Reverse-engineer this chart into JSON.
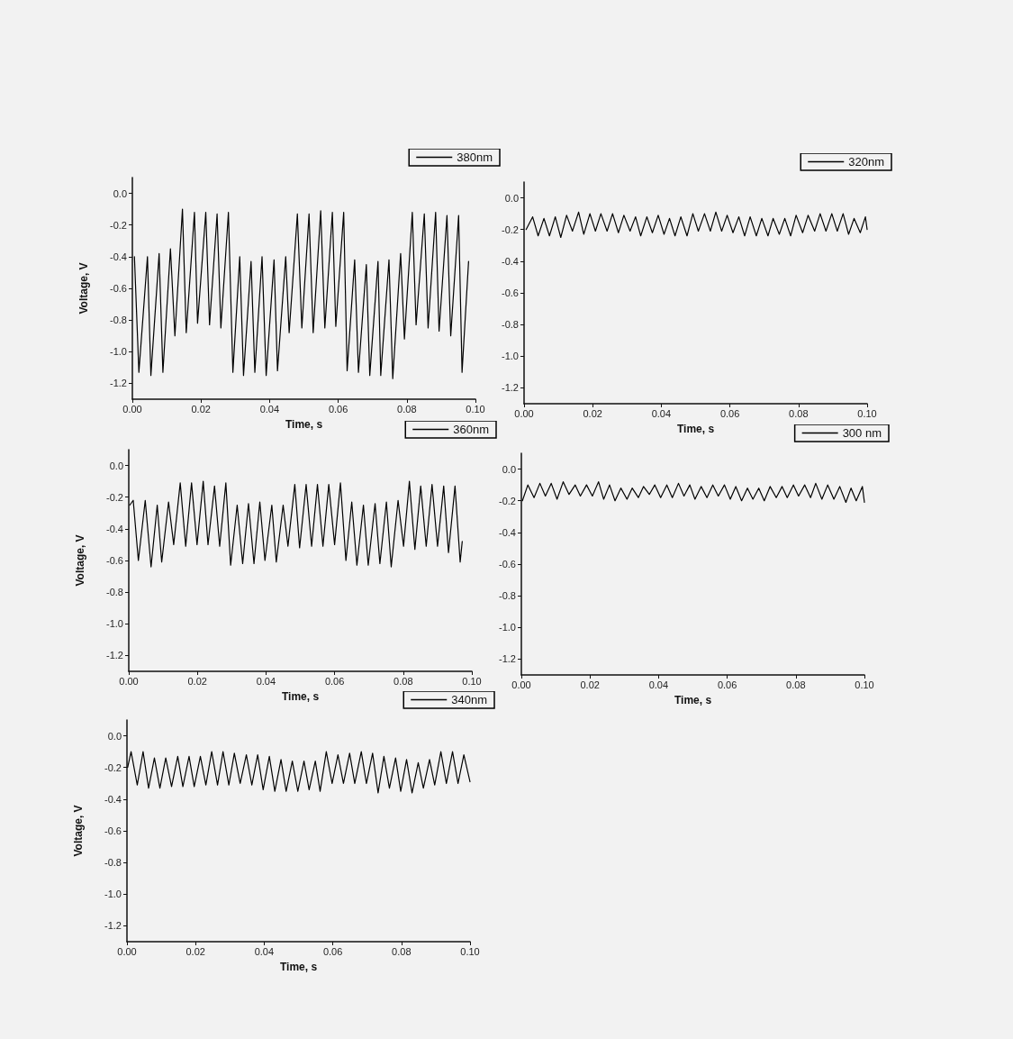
{
  "chart_data": [
    {
      "type": "line",
      "xlabel": "Time, s",
      "ylabel": "Voltage, V",
      "legend": "top right",
      "grid": false,
      "marker": "none",
      "line_style": "solid",
      "xlim": [
        0,
        0.1
      ],
      "ylim": [
        -1.3,
        0.1
      ],
      "xticks": [
        {
          "value": 0,
          "label": "0.00"
        },
        {
          "value": 0.02,
          "label": "0.02"
        },
        {
          "value": 0.04,
          "label": "0.04"
        },
        {
          "value": 0.06,
          "label": "0.06"
        },
        {
          "value": 0.08,
          "label": "0.08"
        },
        {
          "value": 0.1,
          "label": "0.10"
        }
      ],
      "yticks": [
        {
          "value": 0,
          "label": "0.0"
        },
        {
          "value": -0.2,
          "label": "-0.2"
        },
        {
          "value": -0.4,
          "label": "-0.4"
        },
        {
          "value": -0.6,
          "label": "-0.6"
        },
        {
          "value": -0.8,
          "label": "-0.8"
        },
        {
          "value": -1.0,
          "label": "-1.0"
        },
        {
          "value": -1.2,
          "label": "-1.2"
        }
      ],
      "series": [
        {
          "name": "380nm",
          "color": "#000000",
          "x": [
            0.0006,
            0.0019,
            0.0044,
            0.0054,
            0.0078,
            0.0089,
            0.0111,
            0.0124,
            0.0146,
            0.0157,
            0.0181,
            0.019,
            0.0214,
            0.0225,
            0.0247,
            0.0258,
            0.028,
            0.0293,
            0.0313,
            0.0324,
            0.0346,
            0.0357,
            0.0378,
            0.039,
            0.0413,
            0.0423,
            0.0447,
            0.0457,
            0.0481,
            0.0494,
            0.0515,
            0.0527,
            0.0549,
            0.0561,
            0.0583,
            0.0593,
            0.0616,
            0.0626,
            0.0648,
            0.0659,
            0.0682,
            0.0692,
            0.0716,
            0.0724,
            0.0748,
            0.0759,
            0.0782,
            0.0793,
            0.0816,
            0.0827,
            0.0851,
            0.0862,
            0.0884,
            0.0894,
            0.0917,
            0.0928,
            0.0951,
            0.0961,
            0.098
          ],
          "values": [
            -0.4,
            -1.13,
            -0.4,
            -1.15,
            -0.38,
            -1.13,
            -0.35,
            -0.9,
            -0.1,
            -0.88,
            -0.12,
            -0.82,
            -0.12,
            -0.83,
            -0.13,
            -0.85,
            -0.12,
            -1.13,
            -0.4,
            -1.15,
            -0.43,
            -1.13,
            -0.4,
            -1.15,
            -0.42,
            -1.12,
            -0.4,
            -0.88,
            -0.13,
            -0.85,
            -0.13,
            -0.88,
            -0.11,
            -0.85,
            -0.12,
            -0.84,
            -0.12,
            -1.12,
            -0.42,
            -1.13,
            -0.45,
            -1.15,
            -0.43,
            -1.15,
            -0.42,
            -1.17,
            -0.38,
            -0.92,
            -0.12,
            -0.83,
            -0.13,
            -0.85,
            -0.12,
            -0.87,
            -0.14,
            -0.9,
            -0.14,
            -1.13,
            -0.43
          ]
        }
      ]
    },
    {
      "type": "line",
      "xlabel": "Time, s",
      "legend": "top right",
      "grid": false,
      "marker": "none",
      "line_style": "solid",
      "xlim": [
        0,
        0.1
      ],
      "ylim": [
        -1.3,
        0.1
      ],
      "xticks": [
        {
          "value": 0,
          "label": "0.00"
        },
        {
          "value": 0.02,
          "label": "0.02"
        },
        {
          "value": 0.04,
          "label": "0.04"
        },
        {
          "value": 0.06,
          "label": "0.06"
        },
        {
          "value": 0.08,
          "label": "0.08"
        },
        {
          "value": 0.1,
          "label": "0.10"
        }
      ],
      "yticks": [
        {
          "value": 0,
          "label": "0.0"
        },
        {
          "value": -0.2,
          "label": "-0.2"
        },
        {
          "value": -0.4,
          "label": "-0.4"
        },
        {
          "value": -0.6,
          "label": "-0.6"
        },
        {
          "value": -0.8,
          "label": "-0.8"
        },
        {
          "value": -1.0,
          "label": "-1.0"
        },
        {
          "value": -1.2,
          "label": "-1.2"
        }
      ],
      "series": [
        {
          "name": "320nm",
          "color": "#000000",
          "x": [
            0.0006,
            0.0025,
            0.0041,
            0.0058,
            0.0074,
            0.0091,
            0.0107,
            0.0124,
            0.0141,
            0.0159,
            0.0174,
            0.0192,
            0.0208,
            0.0224,
            0.0242,
            0.0258,
            0.0275,
            0.0291,
            0.0309,
            0.0325,
            0.034,
            0.0358,
            0.0374,
            0.0391,
            0.0408,
            0.0424,
            0.044,
            0.0457,
            0.0475,
            0.0492,
            0.0508,
            0.0526,
            0.0543,
            0.0559,
            0.0576,
            0.0592,
            0.0609,
            0.0626,
            0.0643,
            0.0659,
            0.0677,
            0.0693,
            0.0711,
            0.0726,
            0.0744,
            0.076,
            0.0777,
            0.0793,
            0.0812,
            0.0828,
            0.0847,
            0.0863,
            0.088,
            0.0897,
            0.0913,
            0.093,
            0.0946,
            0.0962,
            0.098,
            0.0995,
            0.1
          ],
          "values": [
            -0.2,
            -0.12,
            -0.24,
            -0.13,
            -0.24,
            -0.12,
            -0.25,
            -0.11,
            -0.21,
            -0.09,
            -0.23,
            -0.1,
            -0.21,
            -0.1,
            -0.21,
            -0.1,
            -0.22,
            -0.11,
            -0.21,
            -0.12,
            -0.24,
            -0.12,
            -0.22,
            -0.11,
            -0.23,
            -0.13,
            -0.24,
            -0.12,
            -0.24,
            -0.1,
            -0.21,
            -0.1,
            -0.21,
            -0.09,
            -0.21,
            -0.11,
            -0.22,
            -0.12,
            -0.24,
            -0.12,
            -0.24,
            -0.13,
            -0.24,
            -0.13,
            -0.23,
            -0.13,
            -0.24,
            -0.11,
            -0.22,
            -0.11,
            -0.21,
            -0.1,
            -0.21,
            -0.1,
            -0.21,
            -0.1,
            -0.23,
            -0.13,
            -0.22,
            -0.12,
            -0.2
          ]
        }
      ]
    },
    {
      "type": "line",
      "xlabel": "Time, s",
      "ylabel": "Voltage, V",
      "legend": "top right",
      "grid": false,
      "marker": "none",
      "line_style": "solid",
      "xlim": [
        0,
        0.1
      ],
      "ylim": [
        -1.3,
        0.1
      ],
      "xticks": [
        {
          "value": 0,
          "label": "0.00"
        },
        {
          "value": 0.02,
          "label": "0.02"
        },
        {
          "value": 0.04,
          "label": "0.04"
        },
        {
          "value": 0.06,
          "label": "0.06"
        },
        {
          "value": 0.08,
          "label": "0.08"
        },
        {
          "value": 0.1,
          "label": "0.10"
        }
      ],
      "yticks": [
        {
          "value": 0,
          "label": "0.0"
        },
        {
          "value": -0.2,
          "label": "-0.2"
        },
        {
          "value": -0.4,
          "label": "-0.4"
        },
        {
          "value": -0.6,
          "label": "-0.6"
        },
        {
          "value": -0.8,
          "label": "-0.8"
        },
        {
          "value": -1.0,
          "label": "-1.0"
        },
        {
          "value": -1.2,
          "label": "-1.2"
        }
      ],
      "series": [
        {
          "name": "360nm",
          "color": "#000000",
          "x": [
            0.0003,
            0.0013,
            0.0028,
            0.0048,
            0.0065,
            0.0083,
            0.0096,
            0.0116,
            0.0131,
            0.015,
            0.0166,
            0.0183,
            0.0199,
            0.0217,
            0.0231,
            0.025,
            0.0265,
            0.0283,
            0.0297,
            0.0316,
            0.0332,
            0.0349,
            0.0365,
            0.0382,
            0.0397,
            0.0417,
            0.043,
            0.045,
            0.0464,
            0.0484,
            0.0498,
            0.0517,
            0.0533,
            0.055,
            0.0566,
            0.0583,
            0.06,
            0.0617,
            0.0633,
            0.065,
            0.0665,
            0.0684,
            0.0698,
            0.0718,
            0.0732,
            0.0751,
            0.0765,
            0.0785,
            0.0801,
            0.0818,
            0.0834,
            0.0851,
            0.0867,
            0.0884,
            0.09,
            0.0918,
            0.0932,
            0.0951,
            0.0966,
            0.0972
          ],
          "values": [
            -0.25,
            -0.22,
            -0.6,
            -0.22,
            -0.64,
            -0.25,
            -0.61,
            -0.23,
            -0.5,
            -0.11,
            -0.51,
            -0.11,
            -0.5,
            -0.1,
            -0.5,
            -0.13,
            -0.51,
            -0.11,
            -0.63,
            -0.25,
            -0.62,
            -0.24,
            -0.62,
            -0.23,
            -0.6,
            -0.25,
            -0.61,
            -0.25,
            -0.51,
            -0.12,
            -0.52,
            -0.12,
            -0.51,
            -0.12,
            -0.51,
            -0.12,
            -0.5,
            -0.11,
            -0.6,
            -0.23,
            -0.63,
            -0.25,
            -0.63,
            -0.24,
            -0.62,
            -0.23,
            -0.64,
            -0.22,
            -0.51,
            -0.1,
            -0.53,
            -0.13,
            -0.51,
            -0.12,
            -0.51,
            -0.13,
            -0.55,
            -0.13,
            -0.61,
            -0.48
          ]
        }
      ]
    },
    {
      "type": "line",
      "xlabel": "Time, s",
      "legend": "top right",
      "grid": false,
      "marker": "none",
      "line_style": "solid",
      "xlim": [
        0,
        0.1
      ],
      "ylim": [
        -1.3,
        0.1
      ],
      "xticks": [
        {
          "value": 0,
          "label": "0.00"
        },
        {
          "value": 0.02,
          "label": "0.02"
        },
        {
          "value": 0.04,
          "label": "0.04"
        },
        {
          "value": 0.06,
          "label": "0.06"
        },
        {
          "value": 0.08,
          "label": "0.08"
        },
        {
          "value": 0.1,
          "label": "0.10"
        }
      ],
      "yticks": [
        {
          "value": 0,
          "label": "0.0"
        },
        {
          "value": -0.2,
          "label": "-0.2"
        },
        {
          "value": -0.4,
          "label": "-0.4"
        },
        {
          "value": -0.6,
          "label": "-0.6"
        },
        {
          "value": -0.8,
          "label": "-0.8"
        },
        {
          "value": -1.0,
          "label": "-1.0"
        },
        {
          "value": -1.2,
          "label": "-1.2"
        }
      ],
      "series": [
        {
          "name": "300 nm",
          "color": "#000000",
          "x": [
            0.0003,
            0.0019,
            0.0037,
            0.0054,
            0.007,
            0.0087,
            0.0104,
            0.0122,
            0.0139,
            0.0157,
            0.0172,
            0.019,
            0.0207,
            0.0225,
            0.024,
            0.0257,
            0.0273,
            0.029,
            0.0308,
            0.0323,
            0.0341,
            0.0356,
            0.0373,
            0.0389,
            0.0406,
            0.0424,
            0.044,
            0.0458,
            0.0474,
            0.0491,
            0.0506,
            0.0524,
            0.0541,
            0.0558,
            0.0574,
            0.0592,
            0.0609,
            0.0625,
            0.0642,
            0.0659,
            0.0675,
            0.0692,
            0.0708,
            0.0725,
            0.0743,
            0.076,
            0.0775,
            0.0793,
            0.0808,
            0.0826,
            0.0843,
            0.0858,
            0.0876,
            0.0893,
            0.0911,
            0.0928,
            0.0946,
            0.0961,
            0.0976,
            0.0994,
            0.1
          ],
          "values": [
            -0.2,
            -0.1,
            -0.18,
            -0.09,
            -0.17,
            -0.09,
            -0.19,
            -0.08,
            -0.16,
            -0.1,
            -0.17,
            -0.1,
            -0.17,
            -0.08,
            -0.19,
            -0.1,
            -0.2,
            -0.12,
            -0.19,
            -0.12,
            -0.18,
            -0.11,
            -0.16,
            -0.1,
            -0.18,
            -0.1,
            -0.18,
            -0.09,
            -0.17,
            -0.1,
            -0.19,
            -0.11,
            -0.18,
            -0.1,
            -0.17,
            -0.1,
            -0.19,
            -0.11,
            -0.2,
            -0.12,
            -0.19,
            -0.12,
            -0.2,
            -0.11,
            -0.18,
            -0.11,
            -0.18,
            -0.1,
            -0.17,
            -0.1,
            -0.18,
            -0.09,
            -0.19,
            -0.1,
            -0.19,
            -0.11,
            -0.21,
            -0.12,
            -0.2,
            -0.11,
            -0.21
          ]
        }
      ]
    },
    {
      "type": "line",
      "xlabel": "Time, s",
      "ylabel": "Voltage, V",
      "legend": "top right",
      "grid": false,
      "marker": "none",
      "line_style": "solid",
      "xlim": [
        0,
        0.1
      ],
      "ylim": [
        -1.3,
        0.1
      ],
      "xticks": [
        {
          "value": 0,
          "label": "0.00"
        },
        {
          "value": 0.02,
          "label": "0.02"
        },
        {
          "value": 0.04,
          "label": "0.04"
        },
        {
          "value": 0.06,
          "label": "0.06"
        },
        {
          "value": 0.08,
          "label": "0.08"
        },
        {
          "value": 0.1,
          "label": "0.10"
        }
      ],
      "yticks": [
        {
          "value": 0,
          "label": "0.0"
        },
        {
          "value": -0.2,
          "label": "-0.2"
        },
        {
          "value": -0.4,
          "label": "-0.4"
        },
        {
          "value": -0.6,
          "label": "-0.6"
        },
        {
          "value": -0.8,
          "label": "-0.8"
        },
        {
          "value": -1.0,
          "label": "-1.0"
        },
        {
          "value": -1.2,
          "label": "-1.2"
        }
      ],
      "series": [
        {
          "name": "340nm",
          "color": "#000000",
          "x": [
            0.0002,
            0.0012,
            0.003,
            0.0047,
            0.0063,
            0.008,
            0.0096,
            0.0113,
            0.013,
            0.0148,
            0.0163,
            0.0181,
            0.0196,
            0.0214,
            0.023,
            0.0247,
            0.0264,
            0.028,
            0.0297,
            0.0313,
            0.033,
            0.0348,
            0.0364,
            0.0381,
            0.0397,
            0.0415,
            0.0431,
            0.0449,
            0.0464,
            0.0482,
            0.0498,
            0.0516,
            0.0531,
            0.0549,
            0.0563,
            0.0581,
            0.0598,
            0.0615,
            0.0631,
            0.0649,
            0.0664,
            0.0683,
            0.0698,
            0.0716,
            0.0732,
            0.0749,
            0.0765,
            0.0783,
            0.0798,
            0.0815,
            0.0831,
            0.0849,
            0.0864,
            0.0882,
            0.0897,
            0.0915,
            0.0931,
            0.0949,
            0.0965,
            0.0982,
            0.1
          ],
          "values": [
            -0.2,
            -0.1,
            -0.31,
            -0.1,
            -0.33,
            -0.14,
            -0.33,
            -0.14,
            -0.32,
            -0.13,
            -0.32,
            -0.13,
            -0.32,
            -0.13,
            -0.31,
            -0.1,
            -0.31,
            -0.1,
            -0.31,
            -0.11,
            -0.3,
            -0.12,
            -0.31,
            -0.12,
            -0.34,
            -0.13,
            -0.35,
            -0.15,
            -0.35,
            -0.16,
            -0.35,
            -0.16,
            -0.34,
            -0.16,
            -0.35,
            -0.1,
            -0.3,
            -0.12,
            -0.3,
            -0.11,
            -0.3,
            -0.1,
            -0.3,
            -0.11,
            -0.36,
            -0.13,
            -0.33,
            -0.14,
            -0.35,
            -0.15,
            -0.36,
            -0.17,
            -0.33,
            -0.15,
            -0.31,
            -0.1,
            -0.3,
            -0.1,
            -0.3,
            -0.12,
            -0.29
          ]
        }
      ]
    }
  ]
}
